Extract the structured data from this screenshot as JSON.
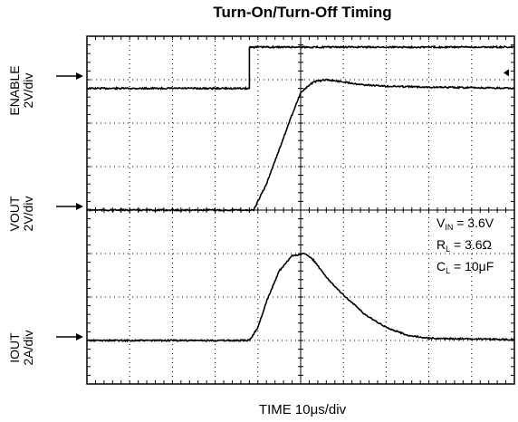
{
  "chart_data": {
    "type": "line",
    "title": "Turn-On/Turn-Off Timing",
    "xlabel": "TIME 10μs/div",
    "grid": true,
    "divisions": {
      "x": 10,
      "y": 8
    },
    "series": [
      {
        "name": "ENABLE",
        "scale": "2V/div",
        "color": "#000000",
        "t": [
          0,
          3.8,
          3.8,
          10
        ],
        "div": [
          6.8,
          6.8,
          7.75,
          7.75
        ]
      },
      {
        "name": "VOUT",
        "scale": "2V/div",
        "color": "#000000",
        "t": [
          0,
          3.9,
          4.2,
          4.5,
          4.8,
          5.0,
          5.3,
          5.6,
          6.0,
          6.5,
          7.0,
          8.0,
          10.0
        ],
        "div": [
          4.0,
          4.0,
          4.6,
          5.4,
          6.2,
          6.7,
          6.95,
          7.0,
          6.95,
          6.88,
          6.85,
          6.83,
          6.8
        ]
      },
      {
        "name": "IOUT",
        "scale": "2A/div",
        "color": "#000000",
        "t": [
          0,
          3.8,
          4.0,
          4.2,
          4.5,
          4.8,
          5.1,
          5.3,
          5.6,
          6.0,
          6.5,
          7.0,
          7.5,
          8.0,
          10.0
        ],
        "div": [
          1.0,
          1.0,
          1.3,
          1.9,
          2.6,
          2.95,
          3.0,
          2.85,
          2.45,
          2.05,
          1.6,
          1.3,
          1.12,
          1.05,
          1.02
        ]
      }
    ],
    "channels": [
      {
        "label_top": "ENABLE",
        "label_bottom": "2V/div"
      },
      {
        "label_top": "VOUT",
        "label_bottom": "2V/div"
      },
      {
        "label_top": "IOUT",
        "label_bottom": "2A/div"
      }
    ],
    "annotations": [
      {
        "sym": "V",
        "sub": "IN",
        "rest": " = 3.6V"
      },
      {
        "sym": "R",
        "sub": "L",
        "rest": " = 3.6Ω"
      },
      {
        "sym": "C",
        "sub": "L",
        "rest": " = 10μF"
      }
    ]
  }
}
